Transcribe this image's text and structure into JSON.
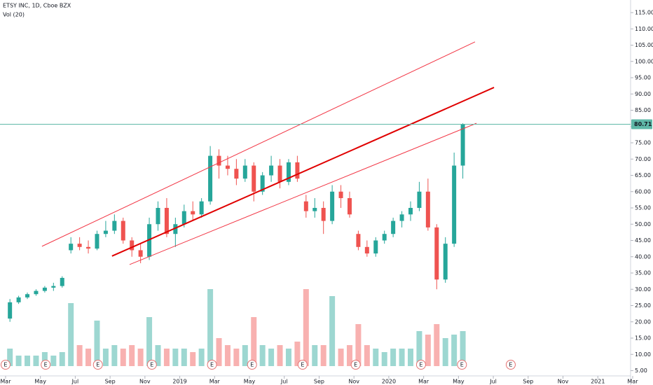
{
  "chart_data": {
    "type": "candlestick",
    "title": "ETSY INC, 1D, Cboe BZX",
    "subtitle": "Vol (20)",
    "up_color": "#26a69a",
    "down_color": "#ef5350",
    "x": [
      0.25,
      0.75,
      1.25,
      1.75,
      2.25,
      2.75,
      3.25,
      3.75,
      4.25,
      4.75,
      5.25,
      5.75,
      6.25,
      6.75,
      7.25,
      7.75,
      8.25,
      8.75,
      9.25,
      9.75,
      10.25,
      10.75,
      11.25,
      11.75,
      12.25,
      12.75,
      13.25,
      13.75,
      14.25,
      14.75,
      15.25,
      15.75,
      16.25,
      16.75,
      17.25,
      17.75,
      18.25,
      18.75,
      19.25,
      19.75,
      20.25,
      20.75,
      21.25,
      21.75,
      22.25,
      22.75,
      23.25,
      23.75,
      24.25,
      24.75,
      25.25,
      25.75,
      26.25
    ],
    "open": [
      21,
      26,
      27.5,
      28.5,
      29.5,
      30.5,
      31,
      42,
      44,
      43,
      42.5,
      47,
      48,
      51,
      45,
      42,
      40,
      50,
      55,
      47,
      50,
      54,
      53,
      57,
      71,
      68,
      67,
      64,
      68,
      60,
      65,
      68,
      63,
      69,
      57,
      54,
      55,
      51,
      60,
      58,
      47,
      43,
      41,
      45,
      47,
      51,
      53,
      55,
      60,
      49,
      33,
      44,
      68
    ],
    "high": [
      27,
      28,
      29,
      30,
      31,
      32,
      34,
      46,
      46,
      45,
      48,
      51,
      53,
      52,
      46,
      44,
      52,
      57,
      58,
      52,
      56,
      57,
      58,
      74,
      73,
      71,
      70,
      70,
      69,
      66,
      71,
      70,
      70,
      71,
      59,
      58,
      57,
      62,
      62,
      60,
      48,
      45,
      46,
      48,
      52,
      54,
      57,
      63,
      64,
      50,
      46,
      72,
      81
    ],
    "low": [
      20,
      25.5,
      27,
      28,
      29,
      29.5,
      30.5,
      41,
      42,
      41,
      42,
      46,
      47,
      44,
      40,
      38,
      39,
      48,
      46,
      43,
      49,
      51,
      52,
      56,
      64,
      65,
      62,
      63,
      57,
      59,
      63,
      61,
      62,
      63,
      52,
      52,
      47,
      50,
      55,
      52,
      42,
      40,
      40,
      44,
      46,
      49,
      51,
      54,
      48,
      30,
      32,
      43,
      64
    ],
    "close": [
      26,
      27.5,
      28.5,
      29.5,
      30.5,
      31,
      33.5,
      44,
      43,
      42.5,
      47,
      48,
      51,
      45,
      42,
      40,
      50,
      55,
      47,
      50,
      54,
      53,
      57,
      71,
      68,
      67,
      64,
      68,
      60,
      65,
      68,
      63,
      69,
      64,
      54,
      55,
      51,
      60,
      58,
      53,
      43,
      41,
      45,
      47,
      51,
      53,
      55,
      60,
      49,
      33,
      44,
      68,
      80.71
    ],
    "volume": [
      5,
      3,
      3,
      3,
      4,
      3,
      4,
      18,
      6,
      5,
      13,
      5,
      6,
      5,
      6,
      5,
      14,
      6,
      5,
      5,
      5,
      4,
      5,
      22,
      8,
      6,
      5,
      6,
      14,
      6,
      5,
      6,
      5,
      7,
      22,
      6,
      6,
      20,
      5,
      6,
      12,
      6,
      5,
      4,
      5,
      5,
      5,
      10,
      9,
      12,
      8,
      9,
      10
    ],
    "xlim": [
      -0.32,
      35.88
    ],
    "ylim": [
      5,
      115
    ],
    "xticks": [
      {
        "value": 0,
        "label": "Mar"
      },
      {
        "value": 2,
        "label": "May"
      },
      {
        "value": 4,
        "label": "Jul"
      },
      {
        "value": 6,
        "label": "Sep"
      },
      {
        "value": 8,
        "label": "Nov"
      },
      {
        "value": 10,
        "label": "2019"
      },
      {
        "value": 12,
        "label": "Mar"
      },
      {
        "value": 14,
        "label": "May"
      },
      {
        "value": 16,
        "label": "Jul"
      },
      {
        "value": 18,
        "label": "Sep"
      },
      {
        "value": 20,
        "label": "Nov"
      },
      {
        "value": 22,
        "label": "2020"
      },
      {
        "value": 24,
        "label": "Mar"
      },
      {
        "value": 26,
        "label": "May"
      },
      {
        "value": 28,
        "label": "Jul"
      },
      {
        "value": 30,
        "label": "Sep"
      },
      {
        "value": 32,
        "label": "Nov"
      },
      {
        "value": 34,
        "label": "2021"
      },
      {
        "value": 36,
        "label": "Mar"
      }
    ],
    "yticks": [
      {
        "value": 5,
        "label": "5.00"
      },
      {
        "value": 10,
        "label": "10.00"
      },
      {
        "value": 15,
        "label": "15.00"
      },
      {
        "value": 20,
        "label": "20.00"
      },
      {
        "value": 25,
        "label": "25.00"
      },
      {
        "value": 30,
        "label": "30.00"
      },
      {
        "value": 35,
        "label": "35.00"
      },
      {
        "value": 40,
        "label": "40.00"
      },
      {
        "value": 45,
        "label": "45.00"
      },
      {
        "value": 50,
        "label": "50.00"
      },
      {
        "value": 55,
        "label": "55.00"
      },
      {
        "value": 60,
        "label": "60.00"
      },
      {
        "value": 65,
        "label": "65.00"
      },
      {
        "value": 70,
        "label": "70.00"
      },
      {
        "value": 75,
        "label": "75.00"
      },
      {
        "value": 80,
        "label": "80.00"
      },
      {
        "value": 85,
        "label": "85.00"
      },
      {
        "value": 90,
        "label": "90.00"
      },
      {
        "value": 95,
        "label": "95.00"
      },
      {
        "value": 100,
        "label": "100.00"
      },
      {
        "value": 105,
        "label": "105.00"
      },
      {
        "value": 110,
        "label": "110.00"
      },
      {
        "value": 115,
        "label": "115.00"
      }
    ],
    "trendlines": [
      {
        "x": [
          2.09,
          26.95
        ],
        "y": [
          43.2,
          106
        ],
        "color": "#f23645",
        "width": 1
      },
      {
        "x": [
          6.11,
          28.04
        ],
        "y": [
          40.2,
          92
        ],
        "color": "#e00000",
        "width": 2
      },
      {
        "x": [
          7.12,
          27.03
        ],
        "y": [
          37.6,
          81
        ],
        "color": "#f23645",
        "width": 1
      }
    ],
    "price_line_color": "#5fb8a8",
    "earnings_label": "E",
    "earnings_x": [
      0,
      2.3,
      5.3,
      8.4,
      11.85,
      14.15,
      17.05,
      20.1,
      23.85,
      26.2,
      29
    ]
  }
}
